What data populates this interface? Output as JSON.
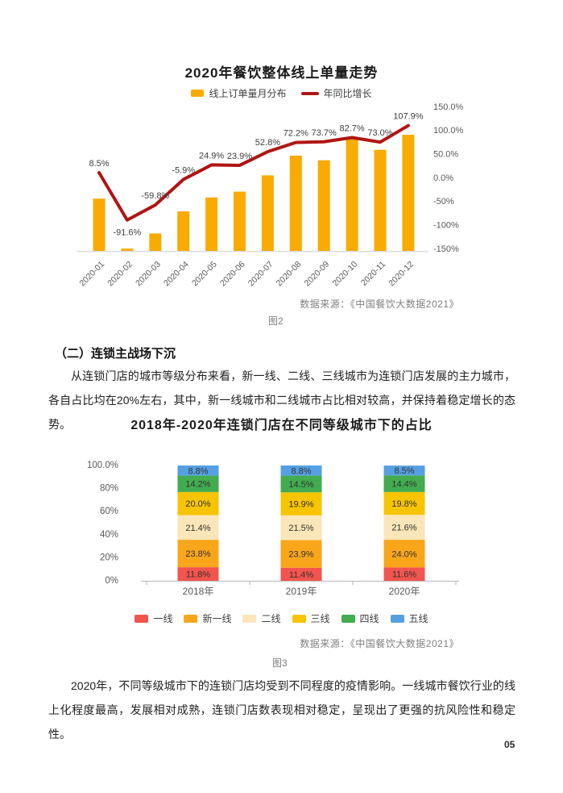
{
  "page": {
    "number": "05"
  },
  "section": {
    "heading": "（二）连锁主战场下沉",
    "paragraph": "从连锁门店的城市等级分布来看，新一线、二线、三线城市为连锁门店发展的主力城市，各自占比均在20%左右，其中，新一线城市和二线城市占比相对较高，并保持着稳定增长的态势。"
  },
  "closing": {
    "paragraph": "2020年，不同等级城市下的连锁门店均受到不同程度的疫情影响。一线城市餐饮行业的线上化程度最高，发展相对成熟，连锁门店数表现相对稳定，呈现出了更强的抗风险性和稳定性。"
  },
  "chart_data": [
    {
      "type": "bar+line",
      "title": "2020年餐饮整体线上单量走势",
      "categories": [
        "2020-01",
        "2020-02",
        "2020-03",
        "2020-04",
        "2020-05",
        "2020-06",
        "2020-07",
        "2020-08",
        "2020-09",
        "2020-10",
        "2020-11",
        "2020-12"
      ],
      "series": [
        {
          "name": "线上订单量月分布",
          "type": "bar",
          "color": "#F9AB00",
          "values_relative": [
            45,
            2,
            15,
            34,
            46,
            51,
            65,
            82,
            78,
            98,
            87,
            100
          ],
          "note": "bar heights are unlabeled in the figure; values are relative heights (max = 100)"
        },
        {
          "name": "年同比增长",
          "type": "line",
          "color": "#B01513",
          "axis": "right",
          "values_pct": [
            8.5,
            -91.6,
            -59.8,
            -5.9,
            24.9,
            23.9,
            52.8,
            72.2,
            73.7,
            82.7,
            73.0,
            107.9
          ]
        }
      ],
      "right_axis": {
        "ticks": [
          "150.0%",
          "100.0%",
          "50.0%",
          "0.0%",
          "-50%",
          "-100%",
          "-150%"
        ],
        "range": [
          -150,
          150
        ]
      },
      "grid": false,
      "legend_position": "top",
      "source": "数据来源：《中国餐饮大数据2021》",
      "figure_label": "图2"
    },
    {
      "type": "stacked-bar",
      "title": "2018年-2020年连锁门店在不同等级城市下的占比",
      "categories": [
        "2018年",
        "2019年",
        "2020年"
      ],
      "series": [
        {
          "name": "一线",
          "color": "#F2544E",
          "values": [
            11.8,
            11.4,
            11.6
          ]
        },
        {
          "name": "新一线",
          "color": "#F9A61B",
          "values": [
            23.8,
            23.9,
            24.0
          ]
        },
        {
          "name": "二线",
          "color": "#FAE6B8",
          "values": [
            21.4,
            21.5,
            21.6
          ]
        },
        {
          "name": "三线",
          "color": "#F7C402",
          "values": [
            20.0,
            19.9,
            19.8
          ]
        },
        {
          "name": "四线",
          "color": "#42AC4F",
          "values": [
            14.2,
            14.5,
            14.4
          ]
        },
        {
          "name": "五线",
          "color": "#55A0E2",
          "values": [
            8.8,
            8.8,
            8.5
          ]
        }
      ],
      "y_axis": {
        "ticks": [
          "100.0%",
          "80%",
          "60%",
          "40%",
          "20%",
          "0%"
        ],
        "range": [
          0,
          100
        ]
      },
      "grid": false,
      "legend_position": "bottom",
      "source": "数据来源：《中国餐饮大数据2021》",
      "figure_label": "图3"
    }
  ]
}
